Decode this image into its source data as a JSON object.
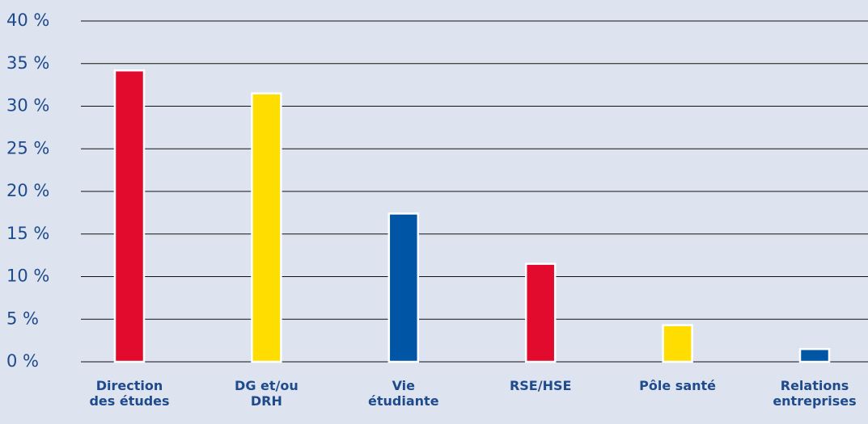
{
  "chart_data": {
    "type": "bar",
    "categories": [
      "Direction des études",
      "DG et/ou DRH",
      "Vie étudiante",
      "RSE/HSE",
      "Pôle santé",
      "Relations entreprises"
    ],
    "values": [
      34.2,
      31.5,
      17.4,
      11.5,
      4.3,
      1.5
    ],
    "colors": [
      "#e30b2d",
      "#ffdd00",
      "#0055a4",
      "#e30b2d",
      "#ffdd00",
      "#0055a4"
    ],
    "ylim": [
      0,
      40
    ],
    "yticks": [
      {
        "value": 0,
        "label": "0 %"
      },
      {
        "value": 5,
        "label": "5 %"
      },
      {
        "value": 10,
        "label": "10 %"
      },
      {
        "value": 15,
        "label": "15 %"
      },
      {
        "value": 20,
        "label": "20 %"
      },
      {
        "value": 25,
        "label": "25 %"
      },
      {
        "value": 30,
        "label": "30 %"
      },
      {
        "value": 35,
        "label": "35 %"
      },
      {
        "value": 40,
        "label": "40 %"
      }
    ],
    "grid": true
  }
}
